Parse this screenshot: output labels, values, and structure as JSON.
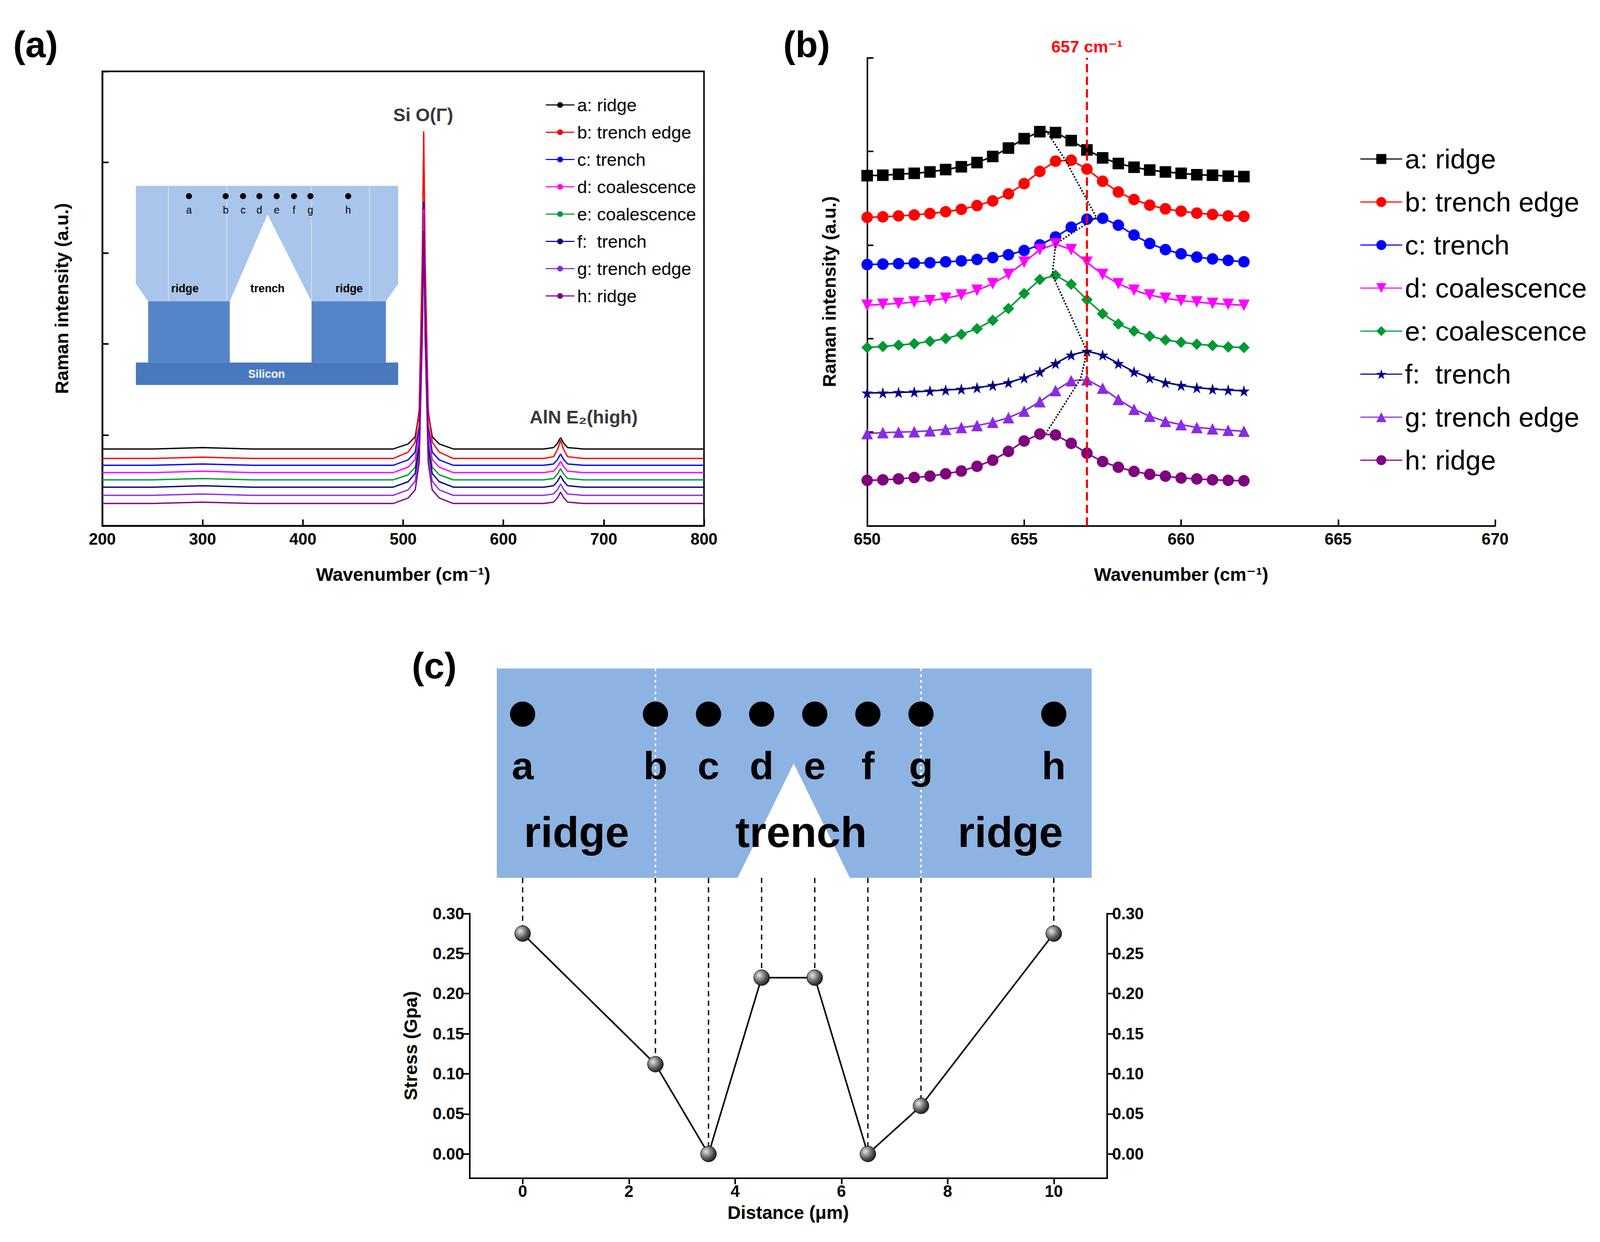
{
  "chart_data": [
    {
      "panel_label": "(a)",
      "type": "line",
      "x_label": "Wavenumber (cm⁻¹)",
      "y_label": "Raman intensity (a.u.)",
      "x": [
        200,
        250,
        300,
        350,
        400,
        450,
        490,
        505,
        512,
        516,
        519,
        520.5,
        522,
        525,
        529,
        536,
        550,
        600,
        640,
        650,
        654,
        657,
        660,
        664,
        680,
        720,
        800
      ],
      "series": [
        {
          "name": "a: ridge",
          "color": "#000000",
          "values": [
            16.9,
            16.9,
            17.2,
            16.9,
            16.9,
            16.9,
            16.9,
            18.0,
            19.6,
            24.9,
            48.7,
            69.9,
            48.7,
            24.9,
            19.6,
            18.0,
            16.9,
            16.9,
            16.9,
            17.2,
            18.2,
            19.4,
            18.2,
            17.2,
            16.9,
            16.9,
            16.9
          ]
        },
        {
          "name": "b: trench edge",
          "color": "#ff0000",
          "values": [
            14.8,
            14.8,
            15.1,
            14.8,
            14.8,
            14.8,
            14.8,
            16.2,
            18.4,
            25.6,
            58.0,
            86.8,
            58.0,
            25.6,
            18.4,
            16.2,
            14.8,
            14.8,
            14.8,
            15.2,
            16.8,
            18.8,
            16.8,
            15.2,
            14.8,
            14.8,
            14.8
          ]
        },
        {
          "name": "c: trench",
          "color": "#0000ff",
          "values": [
            13.3,
            13.3,
            13.6,
            13.3,
            13.3,
            13.3,
            13.3,
            14.5,
            16.2,
            22.0,
            48.1,
            71.3,
            48.1,
            22.0,
            16.2,
            14.5,
            13.3,
            13.3,
            13.3,
            13.6,
            14.6,
            15.8,
            14.6,
            13.6,
            13.3,
            13.3,
            13.3
          ]
        },
        {
          "name": "d: coalescence",
          "color": "#ff00ff",
          "values": [
            11.7,
            11.7,
            12.0,
            11.7,
            11.7,
            11.7,
            11.7,
            12.9,
            14.6,
            20.4,
            46.5,
            69.7,
            46.5,
            20.4,
            14.6,
            12.9,
            11.7,
            11.7,
            11.7,
            12.0,
            13.0,
            14.2,
            13.0,
            12.0,
            11.7,
            11.7,
            11.7
          ]
        },
        {
          "name": "e: coalescence",
          "color": "#009933",
          "values": [
            10.1,
            10.1,
            10.4,
            10.1,
            10.1,
            10.1,
            10.1,
            11.2,
            12.9,
            18.4,
            43.1,
            65.1,
            43.1,
            18.4,
            12.9,
            11.2,
            10.1,
            10.1,
            10.1,
            10.4,
            11.4,
            12.6,
            11.4,
            10.4,
            10.1,
            10.1,
            10.1
          ]
        },
        {
          "name": "f:  trench",
          "color": "#000080",
          "values": [
            8.5,
            8.5,
            8.8,
            8.5,
            8.5,
            8.5,
            8.5,
            9.7,
            11.5,
            17.5,
            44.5,
            68.5,
            44.5,
            17.5,
            11.5,
            9.7,
            8.5,
            8.5,
            8.5,
            8.8,
            9.8,
            11.0,
            9.8,
            8.8,
            8.5,
            8.5,
            8.5
          ]
        },
        {
          "name": "g: trench edge",
          "color": "#8a2be2",
          "values": [
            6.7,
            6.7,
            7.0,
            6.7,
            6.7,
            6.7,
            6.7,
            7.9,
            9.8,
            16.0,
            43.9,
            68.7,
            43.9,
            16.0,
            9.8,
            7.9,
            6.7,
            6.7,
            6.7,
            7.0,
            8.0,
            9.2,
            8.0,
            7.0,
            6.7,
            6.7,
            6.7
          ]
        },
        {
          "name": "h: ridge",
          "color": "#800080",
          "values": [
            4.9,
            4.9,
            5.2,
            4.9,
            4.9,
            4.9,
            4.9,
            6.1,
            7.9,
            13.9,
            40.9,
            64.9,
            40.9,
            13.9,
            7.9,
            6.1,
            4.9,
            4.9,
            4.9,
            5.2,
            6.2,
            7.4,
            6.2,
            5.2,
            4.9,
            4.9,
            4.9
          ]
        }
      ],
      "xlim": [
        200,
        800
      ],
      "xticks": [
        200,
        300,
        400,
        500,
        600,
        700,
        800
      ],
      "ylim": [
        0,
        100
      ],
      "yticks": [
        0,
        20,
        40,
        60,
        80,
        100
      ],
      "tick_labels": "x",
      "grid": false,
      "legend": "upper right",
      "annotations": [
        {
          "text": "Si O(Γ)",
          "x": 520,
          "y": 88
        },
        {
          "text": "AlN E₂(high)",
          "x": 680,
          "y": 21.5
        }
      ],
      "inset": {
        "points": [
          "a",
          "b",
          "c",
          "d",
          "e",
          "f",
          "g",
          "h"
        ],
        "regions": [
          "ridge",
          "trench",
          "ridge"
        ],
        "substrate": "Silicon"
      }
    },
    {
      "panel_label": "(b)",
      "type": "line",
      "x_label": "Wavenumber (cm⁻¹)",
      "y_label": "Raman intensity (a.u.)",
      "x": [
        650,
        650.5,
        651,
        651.5,
        652,
        652.5,
        653,
        653.5,
        654,
        654.5,
        655,
        655.5,
        656,
        656.5,
        657,
        657.5,
        658,
        658.5,
        659,
        659.5,
        660,
        660.5,
        661,
        661.5,
        662
      ],
      "series": [
        {
          "name": "a: ridge",
          "color": "#000000",
          "marker": "square",
          "values": [
            74.8,
            74.9,
            75.1,
            75.3,
            75.6,
            76.1,
            76.7,
            77.6,
            78.9,
            80.7,
            82.7,
            84.2,
            84.0,
            82.3,
            80.3,
            78.6,
            77.4,
            76.6,
            76.0,
            75.6,
            75.3,
            75.0,
            74.9,
            74.7,
            74.6
          ]
        },
        {
          "name": "b: trench edge",
          "color": "#ff0000",
          "marker": "circle",
          "values": [
            65.9,
            66.0,
            66.2,
            66.4,
            66.7,
            67.1,
            67.6,
            68.4,
            69.4,
            70.9,
            73.1,
            75.7,
            77.9,
            78.1,
            76.2,
            73.6,
            71.3,
            69.7,
            68.5,
            67.7,
            67.2,
            66.8,
            66.5,
            66.2,
            66.1
          ]
        },
        {
          "name": "c: trench",
          "color": "#0000ff",
          "marker": "circle",
          "values": [
            55.8,
            55.9,
            56.0,
            56.1,
            56.2,
            56.4,
            56.6,
            56.9,
            57.3,
            57.9,
            58.8,
            60.0,
            61.7,
            63.8,
            65.5,
            65.7,
            64.2,
            62.1,
            60.3,
            59.0,
            58.1,
            57.4,
            57.0,
            56.7,
            56.4
          ]
        },
        {
          "name": "d: coalescence",
          "color": "#ff00ff",
          "marker": "triangle_down",
          "values": [
            47.1,
            47.3,
            47.5,
            47.8,
            48.1,
            48.6,
            49.3,
            50.3,
            51.7,
            53.7,
            56.3,
            59.0,
            60.2,
            59.0,
            56.3,
            53.7,
            51.7,
            50.3,
            49.3,
            48.6,
            48.1,
            47.8,
            47.5,
            47.3,
            47.1
          ]
        },
        {
          "name": "e: coalescence",
          "color": "#009933",
          "marker": "diamond",
          "values": [
            38.1,
            38.3,
            38.6,
            38.9,
            39.4,
            40.0,
            40.9,
            42.1,
            43.9,
            46.4,
            49.6,
            52.6,
            53.5,
            51.6,
            48.3,
            45.3,
            43.1,
            41.6,
            40.5,
            39.7,
            39.2,
            38.8,
            38.5,
            38.2,
            38.1
          ]
        },
        {
          "name": "f:  trench",
          "color": "#000080",
          "marker": "star",
          "values": [
            28.4,
            28.4,
            28.5,
            28.6,
            28.8,
            29.0,
            29.2,
            29.5,
            30.0,
            30.6,
            31.6,
            32.9,
            34.7,
            36.5,
            37.3,
            36.5,
            34.7,
            32.9,
            31.6,
            30.6,
            30.0,
            29.5,
            29.2,
            29.0,
            28.8
          ]
        },
        {
          "name": "g: trench edge",
          "color": "#8a2be2",
          "marker": "triangle",
          "values": [
            19.7,
            19.9,
            20.0,
            20.1,
            20.3,
            20.6,
            21.0,
            21.4,
            22.1,
            23.1,
            24.5,
            26.5,
            28.9,
            31.0,
            31.2,
            29.4,
            27.0,
            24.9,
            23.4,
            22.3,
            21.6,
            21.0,
            20.7,
            20.4,
            20.2
          ]
        },
        {
          "name": "h: ridge",
          "color": "#800080",
          "marker": "circle",
          "values": [
            9.7,
            9.8,
            10.0,
            10.3,
            10.6,
            11.1,
            11.7,
            12.7,
            14.0,
            15.9,
            18.1,
            19.6,
            19.4,
            17.6,
            15.5,
            13.7,
            12.5,
            11.6,
            11.0,
            10.6,
            10.2,
            10.0,
            9.8,
            9.7,
            9.6
          ]
        }
      ],
      "xlim": [
        650,
        670
      ],
      "xticks": [
        650,
        655,
        660,
        665,
        670
      ],
      "ylim": [
        0,
        100
      ],
      "yticks": [
        0,
        20,
        40,
        60,
        80,
        100
      ],
      "tick_labels": "x",
      "grid": false,
      "legend": "right",
      "reference_line": {
        "x": 657,
        "label": "657 cm⁻¹",
        "color": "#ff0000",
        "line_style": "dashed"
      },
      "peak_trend": {
        "x": [
          655.7,
          656.3,
          657.3,
          656.0,
          655.9,
          657.0,
          656.8,
          655.7
        ],
        "values": [
          84.4,
          78.3,
          65.9,
          60.2,
          53.6,
          37.3,
          31.4,
          19.8
        ],
        "color": "#000000",
        "line_style": "dotted"
      }
    },
    {
      "panel_label": "(c)",
      "type": "line",
      "x_label": "Distance (μm)",
      "y_label": "Stress (Gpa)",
      "x": [
        0,
        2.5,
        3.5,
        4.5,
        5.5,
        6.5,
        7.5,
        10
      ],
      "values": [
        0.275,
        0.112,
        0,
        0.22,
        0.22,
        0,
        0.06,
        0.275
      ],
      "color": "#000000",
      "marker": "circle",
      "xlim": [
        -1,
        11
      ],
      "xticks": [
        0,
        2,
        4,
        6,
        8,
        10
      ],
      "ylim": [
        -0.03,
        0.3
      ],
      "yticks": [
        {
          "value": 0,
          "label": "0.00"
        },
        0.05,
        {
          "value": 0.1,
          "label": "0.10"
        },
        0.15,
        {
          "value": 0.2,
          "label": "0.20"
        },
        0.25,
        {
          "value": 0.3,
          "label": "0.30"
        }
      ],
      "y2lim": [
        -0.03,
        0.3
      ],
      "y2ticks": [
        {
          "value": 0,
          "label": "0.00"
        },
        0.05,
        {
          "value": 0.1,
          "label": "0.10"
        },
        0.15,
        {
          "value": 0.2,
          "label": "0.20"
        },
        0.25,
        {
          "value": 0.3,
          "label": "0.30"
        }
      ],
      "grid": false,
      "schematic": {
        "points": [
          "a",
          "b",
          "c",
          "d",
          "e",
          "f",
          "g",
          "h"
        ],
        "regions": [
          "ridge",
          "trench",
          "ridge"
        ]
      }
    }
  ]
}
